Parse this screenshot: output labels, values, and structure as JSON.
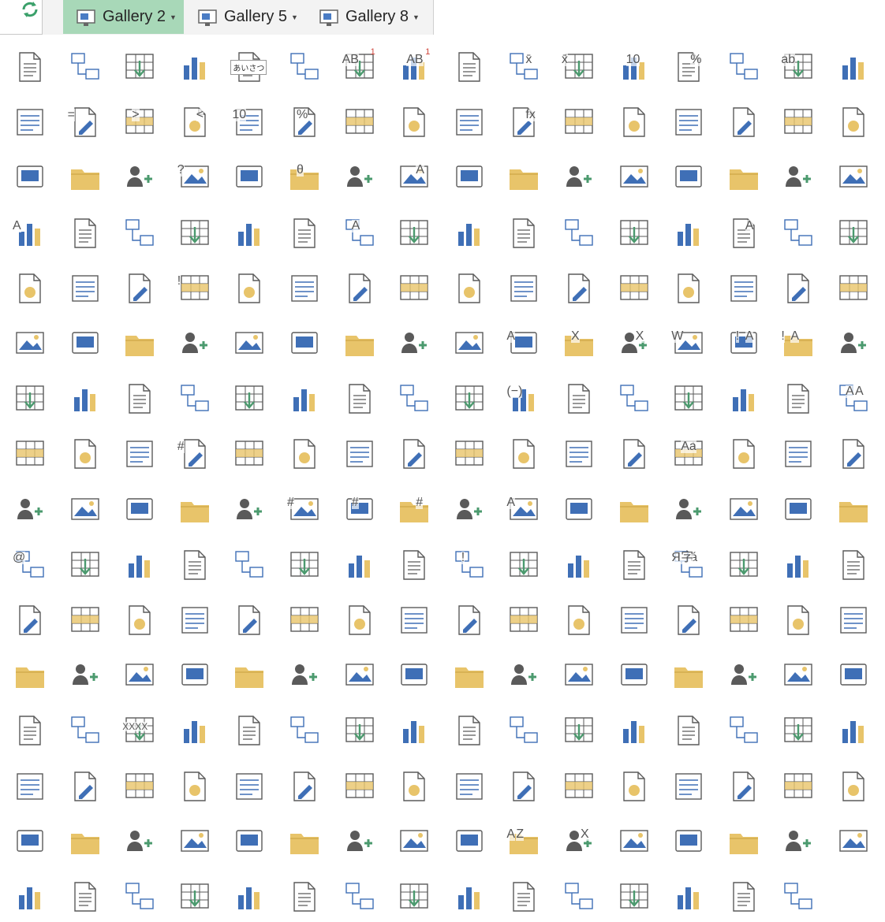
{
  "toolbar": {
    "tabs": [
      {
        "label": "Gallery 2",
        "active": true
      },
      {
        "label": "Gallery 5",
        "active": false
      },
      {
        "label": "Gallery 8",
        "active": false
      }
    ],
    "refresh_icon": "refresh-icon"
  },
  "palette": {
    "tab_active_bg": "#a8d8b8",
    "icon_gray": "#5a5a5a",
    "icon_blue": "#3f6fb6",
    "icon_orange": "#e8c46a",
    "icon_green": "#4b9a6e",
    "icon_red": "#d0443a",
    "icon_purple": "#8b54b8"
  },
  "gallery": {
    "rows": [
      {
        "labels": [
          "AB",
          "AB",
          "x̄",
          "x̄",
          "10",
          "%",
          "ab"
        ],
        "superscripts": [
          "1",
          "1"
        ],
        "japanese": "あいさつ"
      },
      {
        "labels": [
          "=",
          ">",
          "<",
          "10",
          "%",
          "fx"
        ]
      },
      {
        "labels": [
          "?",
          "θ",
          "A"
        ]
      },
      {
        "labels": [
          "A",
          "A",
          "A"
        ]
      },
      {
        "labels": [
          "!"
        ]
      },
      {
        "labels": [
          "A",
          "X",
          "X",
          "W",
          "!",
          "A",
          "!",
          "A"
        ]
      },
      {
        "labels": [
          "(−)",
          "A",
          "A"
        ]
      },
      {
        "labels": [
          "#",
          "Aa"
        ]
      },
      {
        "labels": [
          "#",
          "#",
          "#",
          "A"
        ]
      },
      {
        "labels": [
          "@",
          "!",
          "á",
          "Я",
          "字"
        ]
      },
      {
        "labels": []
      },
      {
        "labels": []
      },
      {
        "labels": [
          "XXXX"
        ]
      },
      {
        "labels": []
      },
      {
        "labels": [
          "A",
          "Z",
          "X"
        ]
      },
      {
        "labels": []
      }
    ],
    "icons": [
      "pages-stack-icon",
      "page-header-icon",
      "grid-help-icon",
      "presentation-tree-icon",
      "greeting-text-icon",
      "dashed-folder-icon",
      "superscript-ab-icon",
      "superscript-ab-icon",
      "format-painter-icon",
      "table-sort-up-mean-icon",
      "table-sort-down-mean-icon",
      "table-top-10-icon",
      "table-percent-icon",
      "table-highlight-row-icon",
      "table-text-icon",
      "table-calendar-icon",
      "table-highlight-alt-icon",
      "table-equals-icon",
      "table-greater-icon",
      "table-less-icon",
      "table-top10-up-icon",
      "table-percent-up-icon",
      "form-layout-icon",
      "page-play-icon",
      "monitor-window-icon",
      "function-icon",
      "quadrants-icon",
      "brightness-icon",
      "shadow-box-icon",
      "contrast-icon",
      "toolbox-icon",
      "hatched-table-icon",
      "arrange-grid-icon",
      "calendar-book-icon",
      "database-book-icon",
      "help-book-icon",
      "search-book-icon",
      "theta-book-icon",
      "star-book-icon",
      "text-book-icon",
      "justify-lines-icon",
      "speaker-volume-icon",
      "swap-windows-icon",
      "page-size-icon",
      "picture-page-icon",
      "text-columns-icon",
      "books-doc-icon",
      "rotate-shape-icon",
      "outline-a-icon",
      "grid-cells-icon",
      "split-panel-icon",
      "doc-columns-icon",
      "doc-lines-icon",
      "database-upload-icon",
      "outline-a-alt-icon",
      "doc-stack-icon",
      "bar-chart-icon",
      "spreadsheet-icon",
      "diagonal-grid-icon",
      "overlap-select-icon",
      "add-list-icon",
      "font-grow-icon",
      "smiley-icon",
      "doc-highlight-icon",
      "doc-corner-icon",
      "screen-clip-icon",
      "remove-field-icon",
      "exclamation-icon",
      "new-tab-icon",
      "org-chart-icon",
      "shape-stack-icon",
      "arrow-box-icon",
      "polygon-edit-icon",
      "add-shape-icon",
      "add-rows-icon",
      "add-frame-icon",
      "bullet-list-icon",
      "numbered-list-icon",
      "add-layer-icon",
      "add-bottom-icon",
      "hierarchy-icon",
      "flow-boxes-icon",
      "tree-structure-icon",
      "org-chart-alt-icon",
      "undo-table-icon",
      "arrow-table-icon",
      "dot-circle-icon",
      "stacked-squares-icon",
      "arrow-table-alt-icon",
      "access-export-icon",
      "excel-import-icon",
      "excel-export-icon",
      "word-import-icon",
      "access-error-icon",
      "access-error-alt-icon",
      "folder-import-icon",
      "folder-upload-icon",
      "import-list-icon",
      "table-upload-icon",
      "table-import-icon",
      "grid-upload-icon",
      "web-upload-icon",
      "page-fold-icon",
      "eraser-icon",
      "move-fields-icon",
      "minus-check-icon",
      "connect-nodes-icon",
      "column-left-icon",
      "column-right-icon",
      "new-dialog-icon",
      "arrow-table-third-icon",
      "text-style-icon",
      "attachment-icon",
      "calendar-grid-icon",
      "film-strip-icon",
      "number-field-icon",
      "page-window-icon",
      "image-monitor-icon",
      "barcode-icon",
      "curl-shape-icon",
      "insert-row-up-icon",
      "insert-row-down-icon",
      "edit-page-icon",
      "star-frame-icon",
      "font-aa-icon",
      "window-stack-icon",
      "text-lines-icon",
      "globe-check-icon",
      "cursor-select-icon",
      "report-layout-icon",
      "blue-doc-icon",
      "highlight-doc-icon",
      "doc-header-icon",
      "number-doc-icon",
      "number-doc-alt-icon",
      "number-doc-bold-icon",
      "doc-list-icon",
      "doc-pink-a-icon",
      "brush-stroke-icon",
      "sync-table-icon",
      "link-doc-icon",
      "search-doc-icon",
      "scroll-icon",
      "doc-window-icon",
      "email-users-icon",
      "text-doc-icon",
      "table-doc-icon",
      "lines-doc-icon",
      "user-edit-icon",
      "lock-key-icon",
      "table-warning-icon",
      "mail-table-icon",
      "certificate-doc-icon",
      "envelope-arrow-icon",
      "news-doc-icon",
      "group-users-icon",
      "translate-icon",
      "checklist-doc-icon",
      "folder-down-icon",
      "table-plain-icon",
      "comment-mail-icon",
      "nodes-network-icon",
      "folder-arrow-icon",
      "doc-minus-icon",
      "doc-list-alt-icon",
      "add-scroll-icon",
      "remove-scroll-icon",
      "print-doc-icon",
      "four-frames-icon",
      "four-frames-alt-icon",
      "card-stack-icon",
      "blank-page-icon",
      "scroll-alt-icon",
      "new-page-icon",
      "share-diagram-icon",
      "add-user-icon",
      "ruler-table-icon",
      "contact-table-icon",
      "contact-card-icon",
      "nodes-alt-icon",
      "landscape-photo-icon",
      "magic-table-icon",
      "new-window-icon",
      "new-chart-icon",
      "new-form-icon",
      "code-window-icon",
      "ruler-table-alt-icon",
      "web-doc-icon",
      "windows-grid-icon",
      "arrow-page-icon",
      "lines-page-icon",
      "grid-table-icon",
      "form-layout-alt-icon",
      "mobile-frame-icon",
      "xxxx-field-icon",
      "mail-remove-icon",
      "user-card-edit-icon",
      "contact-list-icon",
      "globe-user-icon",
      "user-card-icon",
      "folder-settings-icon",
      "text-page-icon",
      "rss-doc-icon",
      "sticky-upload-icon",
      "photo-settings-icon",
      "photo-remove-icon",
      "photo-frame-icon",
      "photo-new-icon",
      "tablet-image-icon",
      "tablet-doc-icon",
      "web-image-icon",
      "transfer-monitor-icon",
      "open-folder-icon",
      "home-icon",
      "site-map-icon",
      "doc-outline-icon",
      "dotted-doc-icon",
      "timer-card-icon",
      "user-back-icon",
      "contact-book-icon",
      "flash-doc-icon",
      "split-bracket-icon",
      "dotted-grid-icon",
      "plain-lines-icon",
      "print-preview-icon",
      "empty-frame-icon",
      "clipboard-paste-icon",
      "timer-pause-icon",
      "landscape-alt-icon",
      "landscape-wide-icon",
      "image-edit-icon",
      "pie-chart-icon",
      "bar-chart-alt-icon",
      "sort-az-icon",
      "excel-arrow-icon",
      "insert-table-icon",
      "cursor-window-icon",
      "play-icon",
      "star-play-icon",
      "table-page-icon",
      "pointer-icon",
      "note-doc-icon",
      "duplicate-doc-icon",
      "letter-doc-icon",
      "sticky-pin-icon",
      "sticky-back-icon",
      "doc-settings-icon",
      "slides-check-icon",
      "page-back-icon",
      "key-icon",
      "printer-icon",
      "printer-check-icon",
      "windows-doc-icon",
      "print-table-icon",
      "search-page-icon"
    ]
  }
}
